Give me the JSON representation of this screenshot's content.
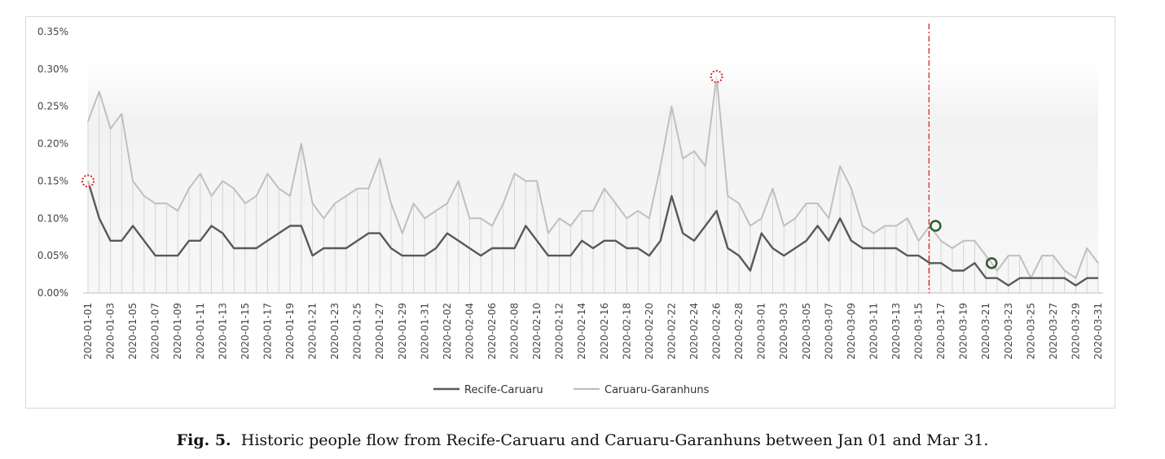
{
  "chart_data": {
    "type": "line",
    "title": "",
    "xlabel": "",
    "ylabel": "",
    "ylim": [
      0,
      0.35
    ],
    "yticks": [
      "0.00%",
      "0.05%",
      "0.10%",
      "0.15%",
      "0.20%",
      "0.25%",
      "0.30%",
      "0.35%"
    ],
    "x_start": "2020-01-01",
    "x_count": 91,
    "xtick_step_days": 2,
    "legend": "bottom",
    "series": [
      {
        "name": "Recife-Caruaru",
        "color": "#595959",
        "values": [
          0.15,
          0.1,
          0.07,
          0.07,
          0.09,
          0.07,
          0.05,
          0.05,
          0.05,
          0.07,
          0.07,
          0.09,
          0.08,
          0.06,
          0.06,
          0.06,
          0.07,
          0.08,
          0.09,
          0.09,
          0.05,
          0.06,
          0.06,
          0.06,
          0.07,
          0.08,
          0.08,
          0.06,
          0.05,
          0.05,
          0.05,
          0.06,
          0.08,
          0.07,
          0.06,
          0.05,
          0.06,
          0.06,
          0.06,
          0.09,
          0.07,
          0.05,
          0.05,
          0.05,
          0.07,
          0.06,
          0.07,
          0.07,
          0.06,
          0.06,
          0.05,
          0.07,
          0.13,
          0.08,
          0.07,
          0.09,
          0.11,
          0.06,
          0.05,
          0.03,
          0.08,
          0.06,
          0.05,
          0.06,
          0.07,
          0.09,
          0.07,
          0.1,
          0.07,
          0.06,
          0.06,
          0.06,
          0.06,
          0.05,
          0.05,
          0.04,
          0.04,
          0.03,
          0.03,
          0.04,
          0.02,
          0.02,
          0.01,
          0.02,
          0.02,
          0.02,
          0.02,
          0.02,
          0.01,
          0.02,
          0.02
        ]
      },
      {
        "name": "Caruaru-Garanhuns",
        "color": "#bfbfbf",
        "values": [
          0.23,
          0.27,
          0.22,
          0.24,
          0.15,
          0.13,
          0.12,
          0.12,
          0.11,
          0.14,
          0.16,
          0.13,
          0.15,
          0.14,
          0.12,
          0.13,
          0.16,
          0.14,
          0.13,
          0.2,
          0.12,
          0.1,
          0.12,
          0.13,
          0.14,
          0.14,
          0.18,
          0.12,
          0.08,
          0.12,
          0.1,
          0.11,
          0.12,
          0.15,
          0.1,
          0.1,
          0.09,
          0.12,
          0.16,
          0.15,
          0.15,
          0.08,
          0.1,
          0.09,
          0.11,
          0.11,
          0.14,
          0.12,
          0.1,
          0.11,
          0.1,
          0.17,
          0.25,
          0.18,
          0.19,
          0.17,
          0.29,
          0.13,
          0.12,
          0.09,
          0.1,
          0.14,
          0.09,
          0.1,
          0.12,
          0.12,
          0.1,
          0.17,
          0.14,
          0.09,
          0.08,
          0.09,
          0.09,
          0.1,
          0.07,
          0.09,
          0.07,
          0.06,
          0.07,
          0.07,
          0.05,
          0.03,
          0.05,
          0.05,
          0.02,
          0.05,
          0.05,
          0.03,
          0.02,
          0.06,
          0.04
        ]
      }
    ],
    "annotations": [
      {
        "type": "vline",
        "x_index": 75,
        "color": "#e0242a",
        "style": "dash-dot"
      },
      {
        "type": "dotted-circle",
        "x_index": 0,
        "value": 0.15,
        "color": "#e0242a"
      },
      {
        "type": "dotted-circle",
        "x_index": 56,
        "value": 0.29,
        "color": "#e0242a"
      },
      {
        "type": "circle",
        "x_index": 75,
        "value": 0.09,
        "color": "#2e5e2a"
      },
      {
        "type": "circle",
        "x_index": 80,
        "value": 0.04,
        "color": "#2e5e2a"
      }
    ]
  },
  "caption": {
    "label": "Fig. 5.",
    "text": "Historic people flow from Recife-Caruaru and Caruaru-Garanhuns between Jan 01 and Mar 31."
  }
}
